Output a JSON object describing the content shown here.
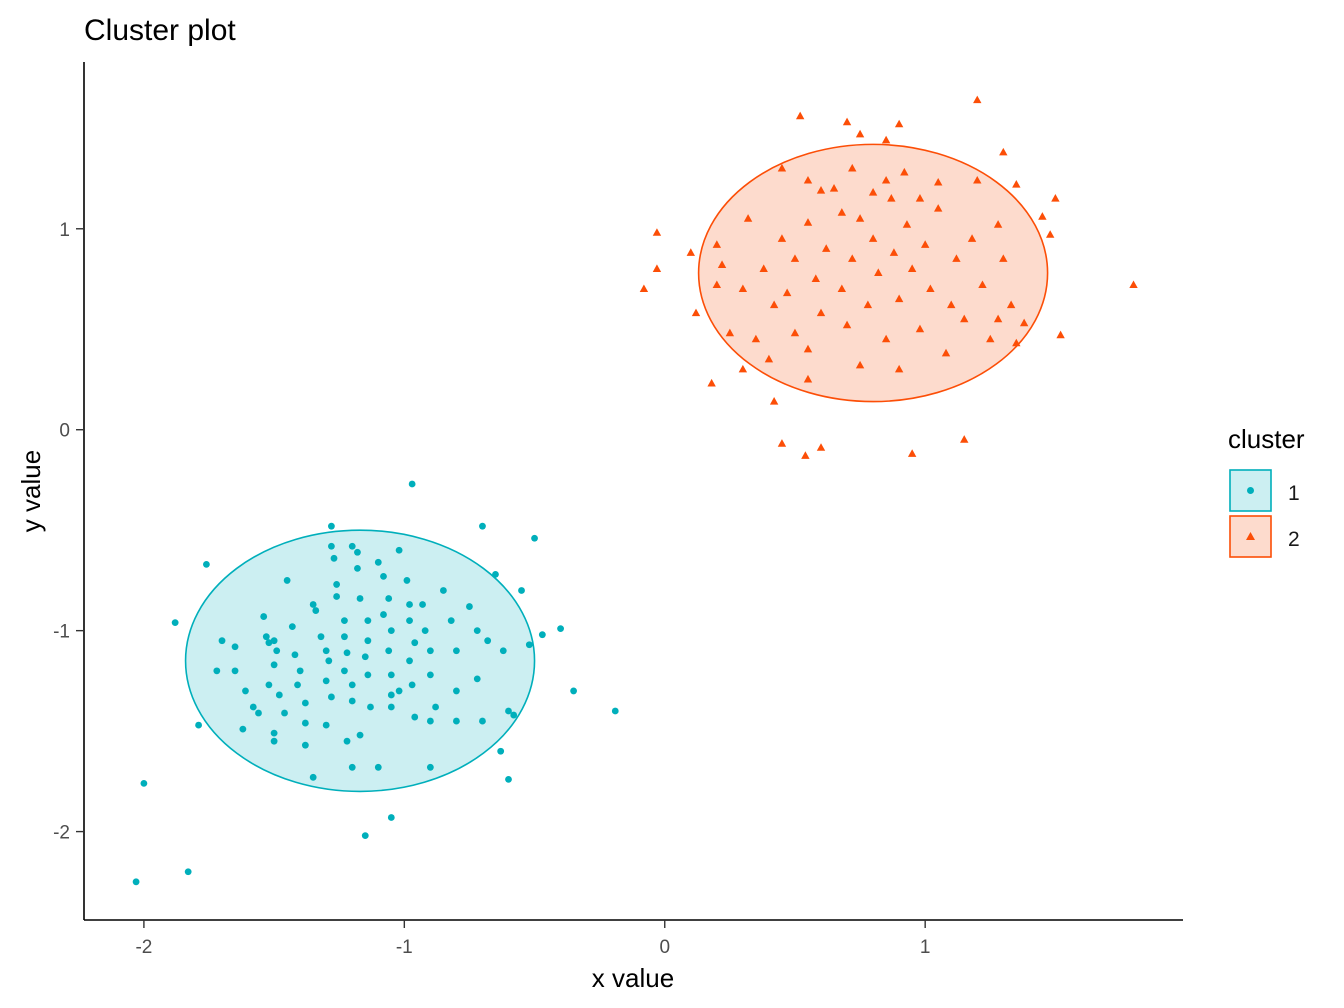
{
  "chart_data": {
    "type": "scatter",
    "title": "Cluster plot",
    "xlabel": "x value",
    "ylabel": "y value",
    "xlim": [
      -2.23,
      1.99
    ],
    "ylim": [
      -2.44,
      1.83
    ],
    "x_ticks": [
      -2,
      -1,
      0,
      1
    ],
    "y_ticks": [
      -2,
      -1,
      0,
      1
    ],
    "grid": false,
    "legend": {
      "title": "cluster",
      "position": "right"
    },
    "series": [
      {
        "name": "1",
        "color": "#00AFBB",
        "fill": "#CCEFF2",
        "marker": "circle",
        "ellipse": {
          "cx": -1.17,
          "cy": -1.15,
          "rx": 0.67,
          "ry": 0.65
        },
        "points": [
          [
            -2.03,
            -2.25
          ],
          [
            -2.0,
            -1.76
          ],
          [
            -1.83,
            -2.2
          ],
          [
            -1.88,
            -0.96
          ],
          [
            -1.76,
            -0.67
          ],
          [
            -1.79,
            -1.47
          ],
          [
            -1.7,
            -1.05
          ],
          [
            -1.72,
            -1.2
          ],
          [
            -1.65,
            -1.08
          ],
          [
            -1.65,
            -1.2
          ],
          [
            -1.61,
            -1.3
          ],
          [
            -1.62,
            -1.49
          ],
          [
            -1.58,
            -1.38
          ],
          [
            -1.56,
            -1.41
          ],
          [
            -1.54,
            -0.93
          ],
          [
            -1.53,
            -1.03
          ],
          [
            -1.52,
            -1.06
          ],
          [
            -1.5,
            -1.05
          ],
          [
            -1.49,
            -1.1
          ],
          [
            -1.5,
            -1.17
          ],
          [
            -1.52,
            -1.27
          ],
          [
            -1.48,
            -1.32
          ],
          [
            -1.46,
            -1.41
          ],
          [
            -1.5,
            -1.51
          ],
          [
            -1.5,
            -1.55
          ],
          [
            -1.45,
            -0.75
          ],
          [
            -1.43,
            -0.98
          ],
          [
            -1.42,
            -1.12
          ],
          [
            -1.4,
            -1.2
          ],
          [
            -1.41,
            -1.27
          ],
          [
            -1.38,
            -1.36
          ],
          [
            -1.38,
            -1.46
          ],
          [
            -1.38,
            -1.57
          ],
          [
            -1.35,
            -0.87
          ],
          [
            -1.34,
            -0.9
          ],
          [
            -1.32,
            -1.03
          ],
          [
            -1.3,
            -1.1
          ],
          [
            -1.29,
            -1.15
          ],
          [
            -1.3,
            -1.25
          ],
          [
            -1.28,
            -1.33
          ],
          [
            -1.3,
            -1.47
          ],
          [
            -1.35,
            -1.73
          ],
          [
            -1.28,
            -0.58
          ],
          [
            -1.27,
            -0.64
          ],
          [
            -1.26,
            -0.77
          ],
          [
            -1.26,
            -0.83
          ],
          [
            -1.23,
            -0.95
          ],
          [
            -1.23,
            -1.03
          ],
          [
            -1.22,
            -1.11
          ],
          [
            -1.23,
            -1.2
          ],
          [
            -1.2,
            -1.27
          ],
          [
            -1.2,
            -1.35
          ],
          [
            -1.22,
            -1.55
          ],
          [
            -1.28,
            -0.48
          ],
          [
            -1.2,
            -0.58
          ],
          [
            -1.18,
            -0.61
          ],
          [
            -1.18,
            -0.69
          ],
          [
            -1.17,
            -0.84
          ],
          [
            -1.14,
            -0.95
          ],
          [
            -1.14,
            -1.05
          ],
          [
            -1.15,
            -1.13
          ],
          [
            -1.14,
            -1.22
          ],
          [
            -1.13,
            -1.38
          ],
          [
            -1.17,
            -1.52
          ],
          [
            -1.2,
            -1.68
          ],
          [
            -1.15,
            -2.02
          ],
          [
            -1.1,
            -0.66
          ],
          [
            -1.08,
            -0.73
          ],
          [
            -1.06,
            -0.84
          ],
          [
            -1.08,
            -0.92
          ],
          [
            -1.05,
            -1.0
          ],
          [
            -1.06,
            -1.1
          ],
          [
            -1.05,
            -1.22
          ],
          [
            -1.05,
            -1.32
          ],
          [
            -1.05,
            -1.38
          ],
          [
            -1.1,
            -1.68
          ],
          [
            -1.05,
            -1.93
          ],
          [
            -1.02,
            -0.6
          ],
          [
            -0.99,
            -0.75
          ],
          [
            -0.98,
            -0.87
          ],
          [
            -0.98,
            -0.95
          ],
          [
            -0.96,
            -1.06
          ],
          [
            -0.98,
            -1.15
          ],
          [
            -0.97,
            -1.27
          ],
          [
            -1.02,
            -1.3
          ],
          [
            -0.96,
            -1.43
          ],
          [
            -0.97,
            -0.27
          ],
          [
            -0.93,
            -0.87
          ],
          [
            -0.92,
            -1.0
          ],
          [
            -0.9,
            -1.1
          ],
          [
            -0.9,
            -1.22
          ],
          [
            -0.88,
            -1.38
          ],
          [
            -0.9,
            -1.45
          ],
          [
            -0.9,
            -1.68
          ],
          [
            -0.85,
            -0.8
          ],
          [
            -0.82,
            -0.95
          ],
          [
            -0.8,
            -1.1
          ],
          [
            -0.8,
            -1.3
          ],
          [
            -0.8,
            -1.45
          ],
          [
            -0.75,
            -0.88
          ],
          [
            -0.72,
            -1.0
          ],
          [
            -0.72,
            -1.24
          ],
          [
            -0.7,
            -0.48
          ],
          [
            -0.68,
            -1.05
          ],
          [
            -0.7,
            -1.45
          ],
          [
            -0.65,
            -0.72
          ],
          [
            -0.62,
            -1.1
          ],
          [
            -0.63,
            -1.6
          ],
          [
            -0.6,
            -1.74
          ],
          [
            -0.6,
            -1.4
          ],
          [
            -0.58,
            -1.42
          ],
          [
            -0.55,
            -0.8
          ],
          [
            -0.52,
            -1.07
          ],
          [
            -0.5,
            -0.54
          ],
          [
            -0.47,
            -1.02
          ],
          [
            -0.4,
            -0.99
          ],
          [
            -0.35,
            -1.3
          ],
          [
            -0.19,
            -1.4
          ]
        ]
      },
      {
        "name": "2",
        "color": "#FC4E07",
        "fill": "#FDDBCD",
        "marker": "triangle",
        "ellipse": {
          "cx": 0.8,
          "cy": 0.78,
          "rx": 0.67,
          "ry": 0.64
        },
        "points": [
          [
            -0.08,
            0.7
          ],
          [
            -0.03,
            0.98
          ],
          [
            -0.03,
            0.8
          ],
          [
            0.1,
            0.88
          ],
          [
            0.12,
            0.58
          ],
          [
            0.18,
            0.23
          ],
          [
            0.2,
            0.72
          ],
          [
            0.2,
            0.92
          ],
          [
            0.22,
            0.82
          ],
          [
            0.25,
            0.48
          ],
          [
            0.3,
            0.3
          ],
          [
            0.3,
            0.7
          ],
          [
            0.32,
            1.05
          ],
          [
            0.35,
            0.45
          ],
          [
            0.38,
            0.8
          ],
          [
            0.4,
            0.35
          ],
          [
            0.42,
            0.62
          ],
          [
            0.45,
            0.95
          ],
          [
            0.47,
            0.68
          ],
          [
            0.5,
            0.85
          ],
          [
            0.5,
            0.48
          ],
          [
            0.55,
            1.03
          ],
          [
            0.55,
            0.25
          ],
          [
            0.55,
            0.4
          ],
          [
            0.58,
            0.75
          ],
          [
            0.6,
            0.58
          ],
          [
            0.62,
            0.9
          ],
          [
            0.65,
            1.2
          ],
          [
            0.68,
            0.7
          ],
          [
            0.7,
            0.52
          ],
          [
            0.72,
            0.85
          ],
          [
            0.75,
            1.05
          ],
          [
            0.75,
            0.32
          ],
          [
            0.78,
            0.62
          ],
          [
            0.8,
            0.95
          ],
          [
            0.82,
            0.78
          ],
          [
            0.85,
            0.45
          ],
          [
            0.87,
            1.15
          ],
          [
            0.88,
            0.88
          ],
          [
            0.9,
            0.65
          ],
          [
            0.9,
            0.3
          ],
          [
            0.93,
            1.02
          ],
          [
            0.95,
            0.8
          ],
          [
            0.98,
            0.5
          ],
          [
            1.0,
            0.92
          ],
          [
            1.02,
            0.7
          ],
          [
            1.05,
            1.1
          ],
          [
            1.08,
            0.38
          ],
          [
            1.1,
            0.62
          ],
          [
            1.12,
            0.85
          ],
          [
            1.15,
            0.55
          ],
          [
            1.18,
            0.95
          ],
          [
            1.22,
            0.72
          ],
          [
            1.25,
            0.45
          ],
          [
            1.28,
            1.02
          ],
          [
            1.3,
            0.85
          ],
          [
            1.33,
            0.62
          ],
          [
            1.2,
            1.24
          ],
          [
            0.45,
            1.3
          ],
          [
            0.55,
            1.24
          ],
          [
            0.6,
            1.19
          ],
          [
            0.68,
            1.08
          ],
          [
            0.72,
            1.3
          ],
          [
            0.8,
            1.18
          ],
          [
            0.85,
            1.24
          ],
          [
            0.92,
            1.28
          ],
          [
            0.98,
            1.15
          ],
          [
            1.05,
            1.23
          ],
          [
            1.2,
            1.64
          ],
          [
            0.52,
            1.56
          ],
          [
            0.7,
            1.53
          ],
          [
            0.75,
            1.47
          ],
          [
            0.85,
            1.44
          ],
          [
            0.9,
            1.52
          ],
          [
            1.3,
            1.38
          ],
          [
            1.35,
            1.22
          ],
          [
            1.45,
            1.06
          ],
          [
            1.48,
            0.97
          ],
          [
            1.5,
            1.15
          ],
          [
            1.52,
            0.47
          ],
          [
            1.8,
            0.72
          ],
          [
            1.38,
            0.53
          ],
          [
            1.35,
            0.43
          ],
          [
            1.28,
            0.55
          ],
          [
            0.42,
            0.14
          ],
          [
            0.45,
            -0.07
          ],
          [
            0.54,
            -0.13
          ],
          [
            0.6,
            -0.09
          ],
          [
            0.95,
            -0.12
          ],
          [
            1.15,
            -0.05
          ]
        ]
      }
    ],
    "legend_entries": [
      "1",
      "2"
    ]
  }
}
